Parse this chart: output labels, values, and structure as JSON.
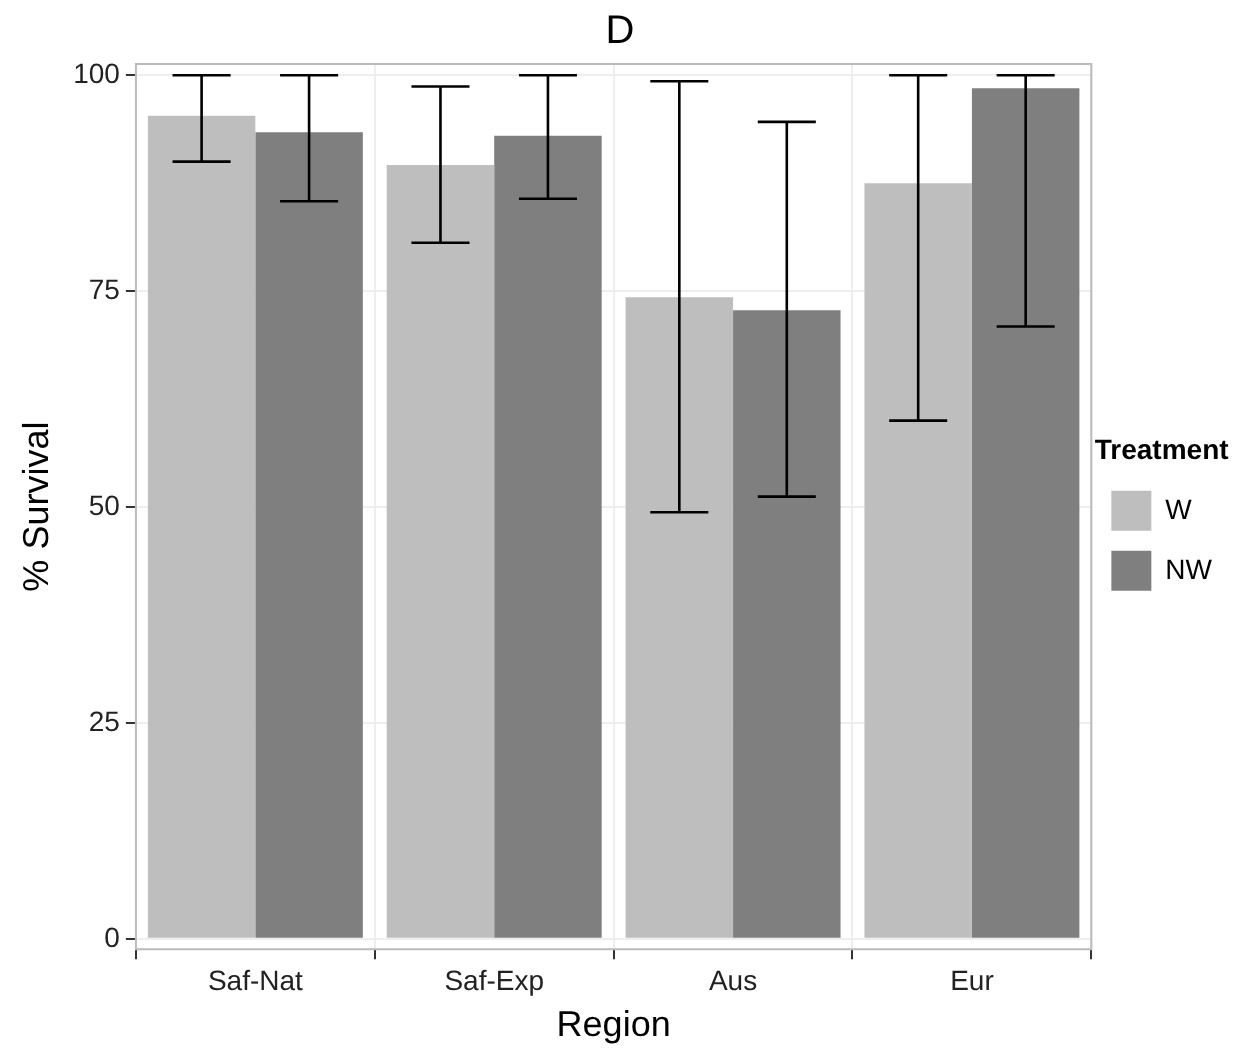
{
  "chart_data": {
    "type": "bar",
    "title": "D",
    "xlabel": "Region",
    "ylabel": "% Survival",
    "legend_title": "Treatment",
    "categories": [
      "Saf-Nat",
      "Saf-Exp",
      "Aus",
      "Eur"
    ],
    "series": [
      {
        "name": "W",
        "color": "#bebebe",
        "values": [
          95.3,
          89.6,
          74.3,
          87.5
        ],
        "errors": [
          [
            90.0,
            100
          ],
          [
            80.6,
            98.7
          ],
          [
            49.4,
            99.3
          ],
          [
            60.0,
            100
          ]
        ]
      },
      {
        "name": "NW",
        "color": "#7f7f7f",
        "values": [
          93.4,
          93.0,
          72.8,
          98.5
        ],
        "errors": [
          [
            85.4,
            100
          ],
          [
            85.7,
            100
          ],
          [
            51.2,
            94.6
          ],
          [
            70.9,
            100
          ]
        ]
      }
    ],
    "ylim": [
      -1.2,
      101.3
    ],
    "yticks": [
      0,
      25,
      50,
      75,
      100
    ],
    "grid": true,
    "legend": "right"
  }
}
